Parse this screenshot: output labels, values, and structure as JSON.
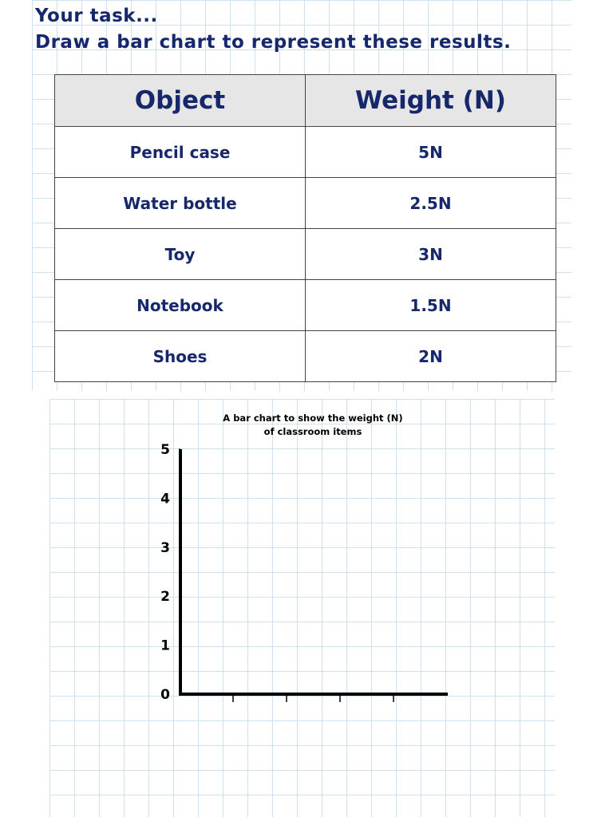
{
  "header": {
    "line1": "Your task...",
    "line2": "Draw a bar chart to represent these results."
  },
  "table": {
    "columns": [
      "Object",
      "Weight (N)"
    ],
    "rows": [
      [
        "Pencil case",
        "5N"
      ],
      [
        "Water bottle",
        "2.5N"
      ],
      [
        "Toy",
        "3N"
      ],
      [
        "Notebook",
        "1.5N"
      ],
      [
        "Shoes",
        "2N"
      ]
    ]
  },
  "chart": {
    "title_lines": [
      "A bar chart to show the weight (N)",
      "of classroom items"
    ],
    "ylim": [
      0,
      5
    ],
    "yticks": [
      0,
      1,
      2,
      3,
      4,
      5
    ]
  }
}
